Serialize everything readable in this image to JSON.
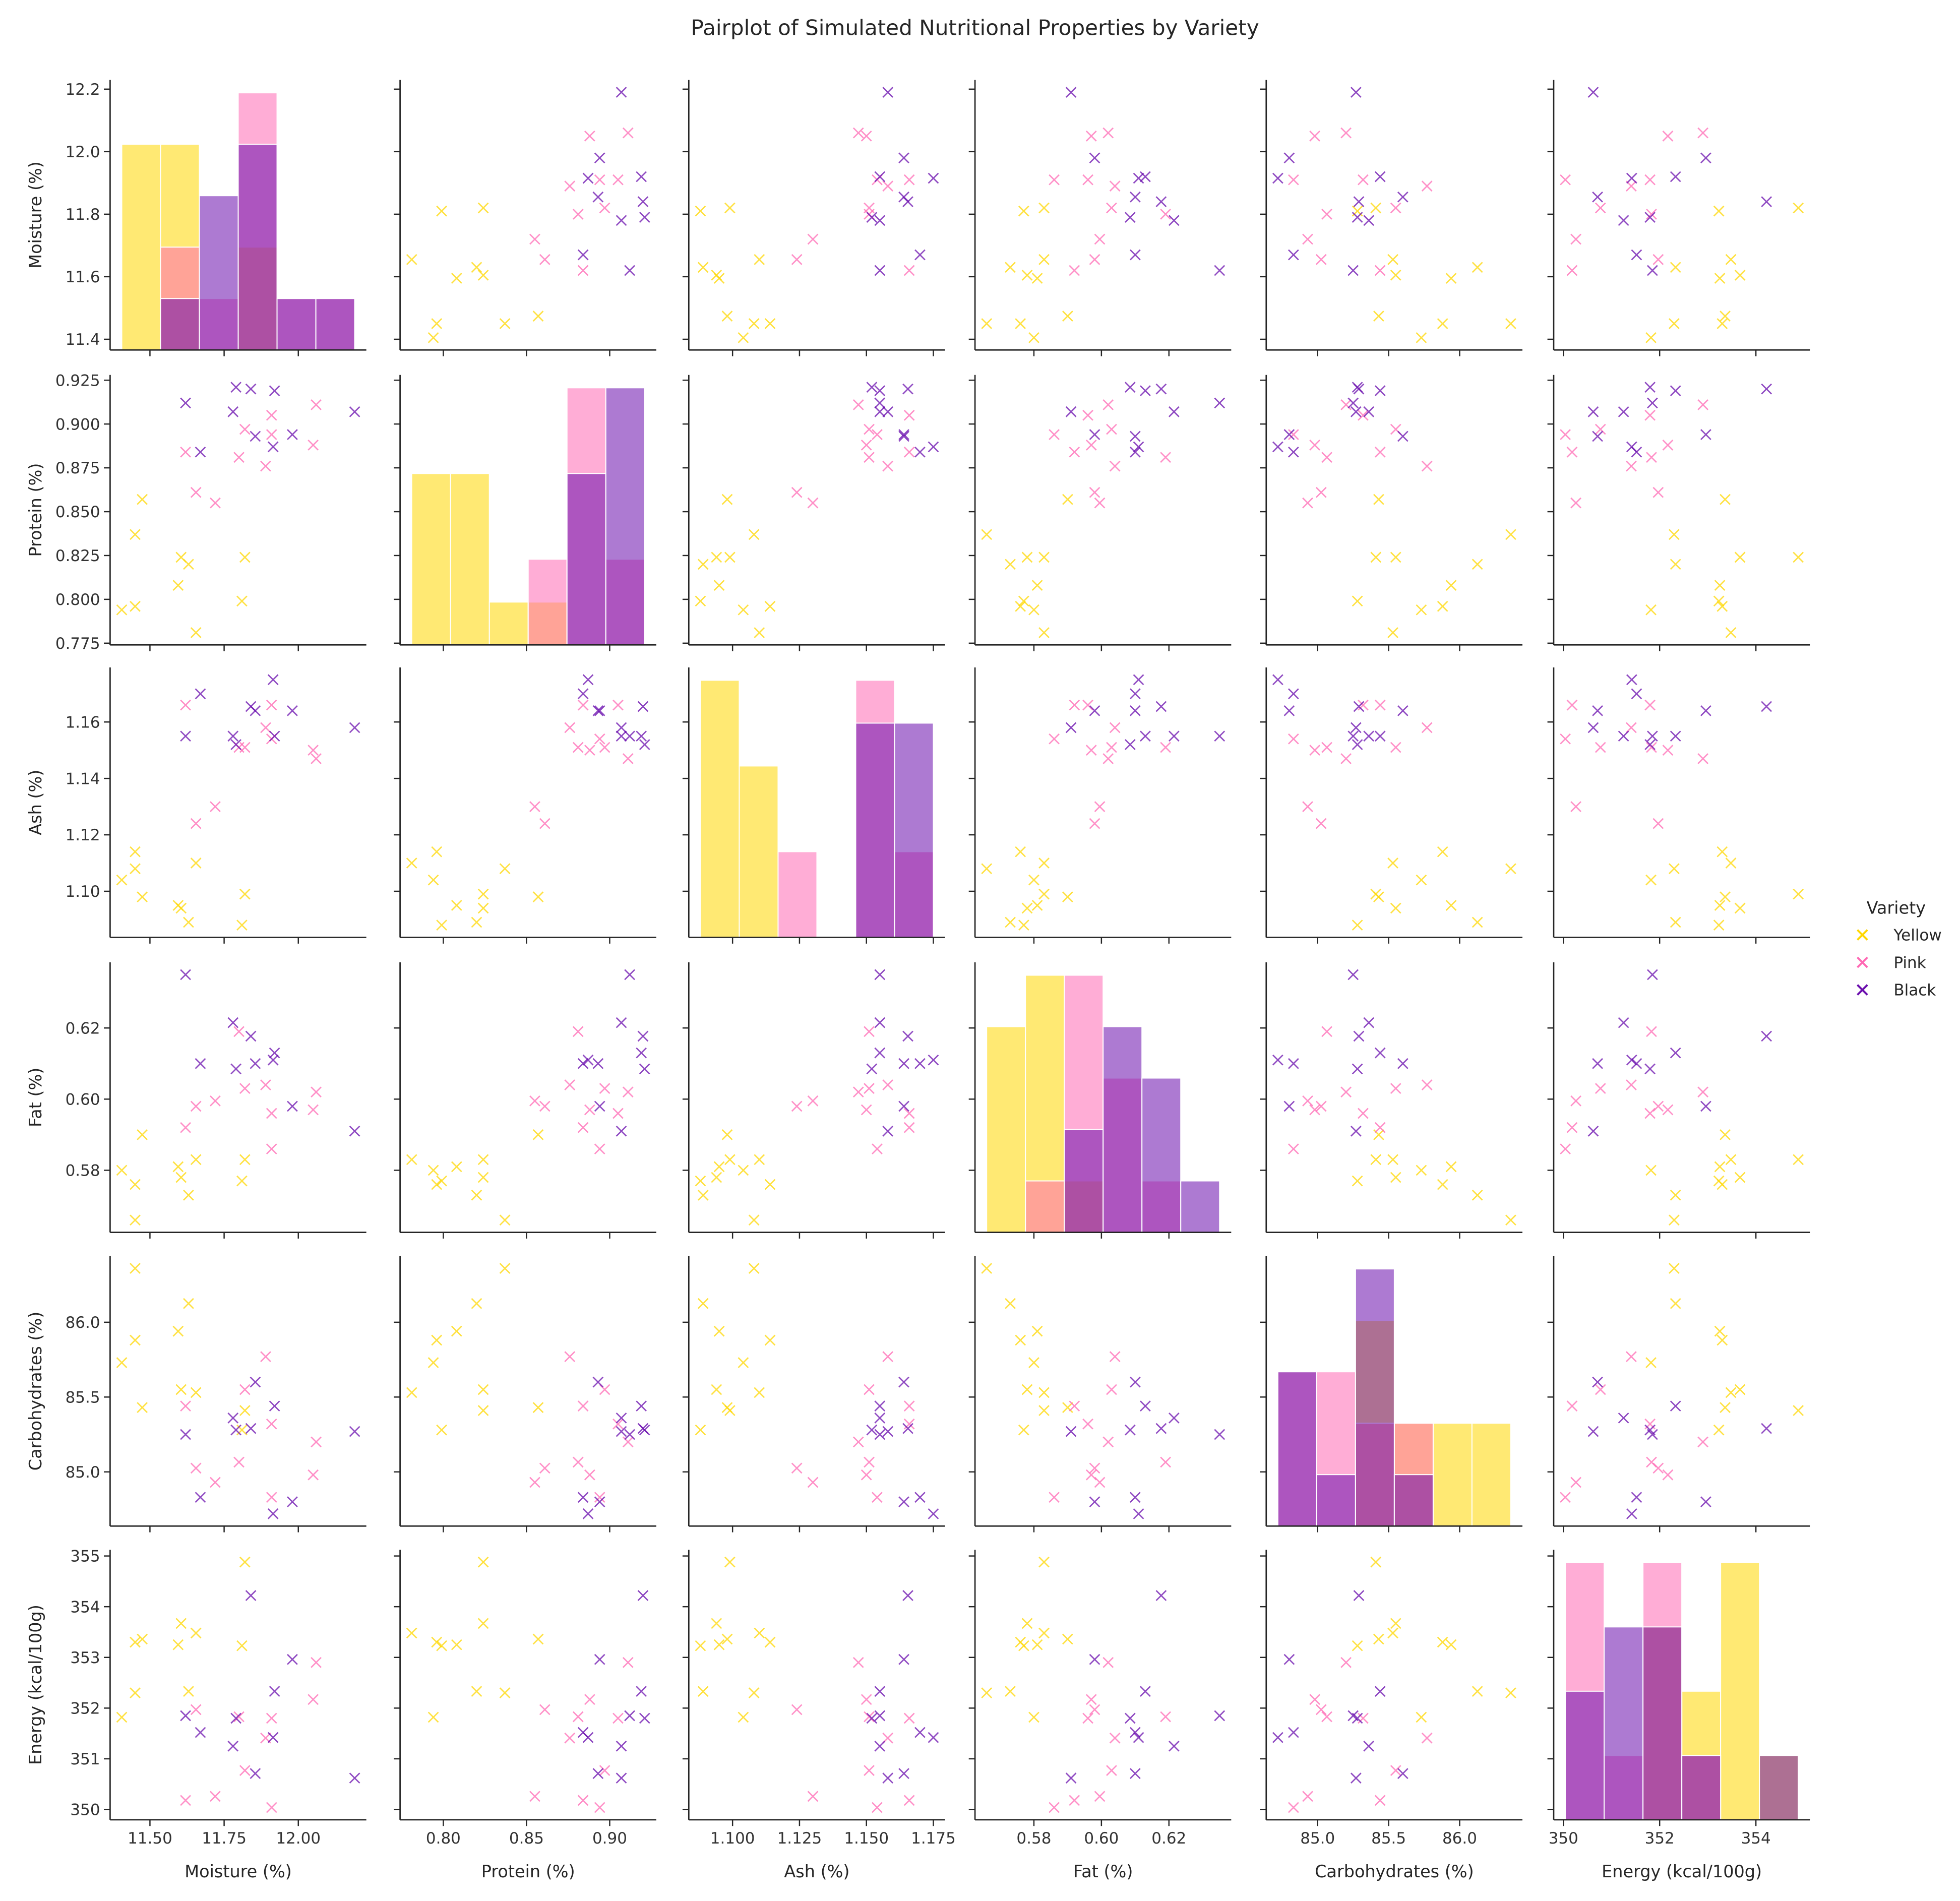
{
  "chart_data": {
    "type": "scatter",
    "subtype": "pairplot",
    "title": "Pairplot of Simulated Nutritional Properties by Variety",
    "legend": {
      "title": "Variety",
      "placement": "right"
    },
    "diagonal": "histogram",
    "bins": 6,
    "marker": "x",
    "grid": false,
    "variables": [
      {
        "key": "moisture",
        "label": "Moisture (%)",
        "ticks": [
          "11.4",
          "11.6",
          "11.8",
          "12.0",
          "12.2"
        ],
        "xticks": [
          "11.50",
          "11.75",
          "12.00"
        ]
      },
      {
        "key": "protein",
        "label": "Protein (%)",
        "ticks": [
          "0.775",
          "0.800",
          "0.825",
          "0.850",
          "0.875",
          "0.900",
          "0.925"
        ],
        "xticks": [
          "0.80",
          "0.85",
          "0.90"
        ]
      },
      {
        "key": "ash",
        "label": "Ash (%)",
        "ticks": [
          "1.10",
          "1.12",
          "1.14",
          "1.16"
        ],
        "xticks": [
          "1.100",
          "1.125",
          "1.150",
          "1.175"
        ]
      },
      {
        "key": "fat",
        "label": "Fat (%)",
        "ticks": [
          "0.58",
          "0.60",
          "0.62"
        ],
        "xticks": [
          "0.58",
          "0.60",
          "0.62"
        ]
      },
      {
        "key": "carbohydrates",
        "label": "Carbohydrates (%)",
        "ticks": [
          "85.0",
          "85.5",
          "86.0"
        ],
        "xticks": [
          "85.0",
          "85.5",
          "86.0"
        ]
      },
      {
        "key": "energy",
        "label": "Energy (kcal/100g)",
        "ticks": [
          "350",
          "351",
          "352",
          "353",
          "354",
          "355"
        ],
        "xticks": [
          "350",
          "352",
          "354"
        ]
      }
    ],
    "series": [
      {
        "name": "Yellow",
        "color": "#FFD700",
        "points": [
          [
            11.405,
            0.794,
            1.104,
            0.58,
            85.73,
            351.82
          ],
          [
            11.45,
            0.796,
            1.114,
            0.576,
            85.88,
            353.3
          ],
          [
            11.45,
            0.837,
            1.108,
            0.566,
            86.36,
            352.3
          ],
          [
            11.474,
            0.857,
            1.098,
            0.59,
            85.43,
            353.36
          ],
          [
            11.595,
            0.808,
            1.095,
            0.581,
            85.94,
            353.25
          ],
          [
            11.605,
            0.824,
            1.094,
            0.578,
            85.55,
            353.67
          ],
          [
            11.63,
            0.82,
            1.089,
            0.573,
            86.125,
            352.33
          ],
          [
            11.655,
            0.781,
            1.11,
            0.583,
            85.53,
            353.48
          ],
          [
            11.82,
            0.824,
            1.099,
            0.583,
            85.41,
            354.88
          ],
          [
            11.81,
            0.799,
            1.088,
            0.577,
            85.28,
            353.23
          ]
        ]
      },
      {
        "name": "Pink",
        "color": "#FF69B4",
        "points": [
          [
            11.62,
            0.884,
            1.166,
            0.592,
            85.44,
            350.18
          ],
          [
            11.655,
            0.861,
            1.124,
            0.598,
            85.025,
            351.97
          ],
          [
            11.72,
            0.855,
            1.13,
            0.5995,
            84.93,
            350.26
          ],
          [
            11.82,
            0.897,
            1.151,
            0.603,
            85.55,
            350.77
          ],
          [
            11.8,
            0.881,
            1.151,
            0.619,
            85.065,
            351.83
          ],
          [
            11.91,
            0.905,
            1.166,
            0.596,
            85.32,
            351.8
          ],
          [
            11.91,
            0.894,
            1.154,
            0.586,
            84.83,
            350.04
          ],
          [
            11.89,
            0.876,
            1.158,
            0.604,
            85.77,
            351.41
          ],
          [
            12.06,
            0.911,
            1.147,
            0.602,
            85.2,
            352.9
          ],
          [
            12.05,
            0.888,
            1.15,
            0.597,
            84.98,
            352.17
          ]
        ]
      },
      {
        "name": "Black",
        "color": "#6A0DAD",
        "points": [
          [
            11.62,
            0.912,
            1.155,
            0.635,
            85.25,
            351.85
          ],
          [
            11.67,
            0.884,
            1.17,
            0.61,
            84.83,
            351.52
          ],
          [
            11.79,
            0.921,
            1.152,
            0.6085,
            85.28,
            351.8
          ],
          [
            11.84,
            0.92,
            1.1655,
            0.6177,
            85.29,
            354.22
          ],
          [
            11.92,
            0.919,
            1.155,
            0.613,
            85.44,
            352.33
          ],
          [
            11.78,
            0.907,
            1.155,
            0.6215,
            85.36,
            351.25
          ],
          [
            11.855,
            0.893,
            1.164,
            0.61,
            85.6,
            350.71
          ],
          [
            11.915,
            0.887,
            1.175,
            0.611,
            84.72,
            351.42
          ],
          [
            11.98,
            0.894,
            1.164,
            0.598,
            84.8,
            352.96
          ],
          [
            12.19,
            0.907,
            1.158,
            0.591,
            85.27,
            350.62
          ]
        ]
      }
    ]
  }
}
